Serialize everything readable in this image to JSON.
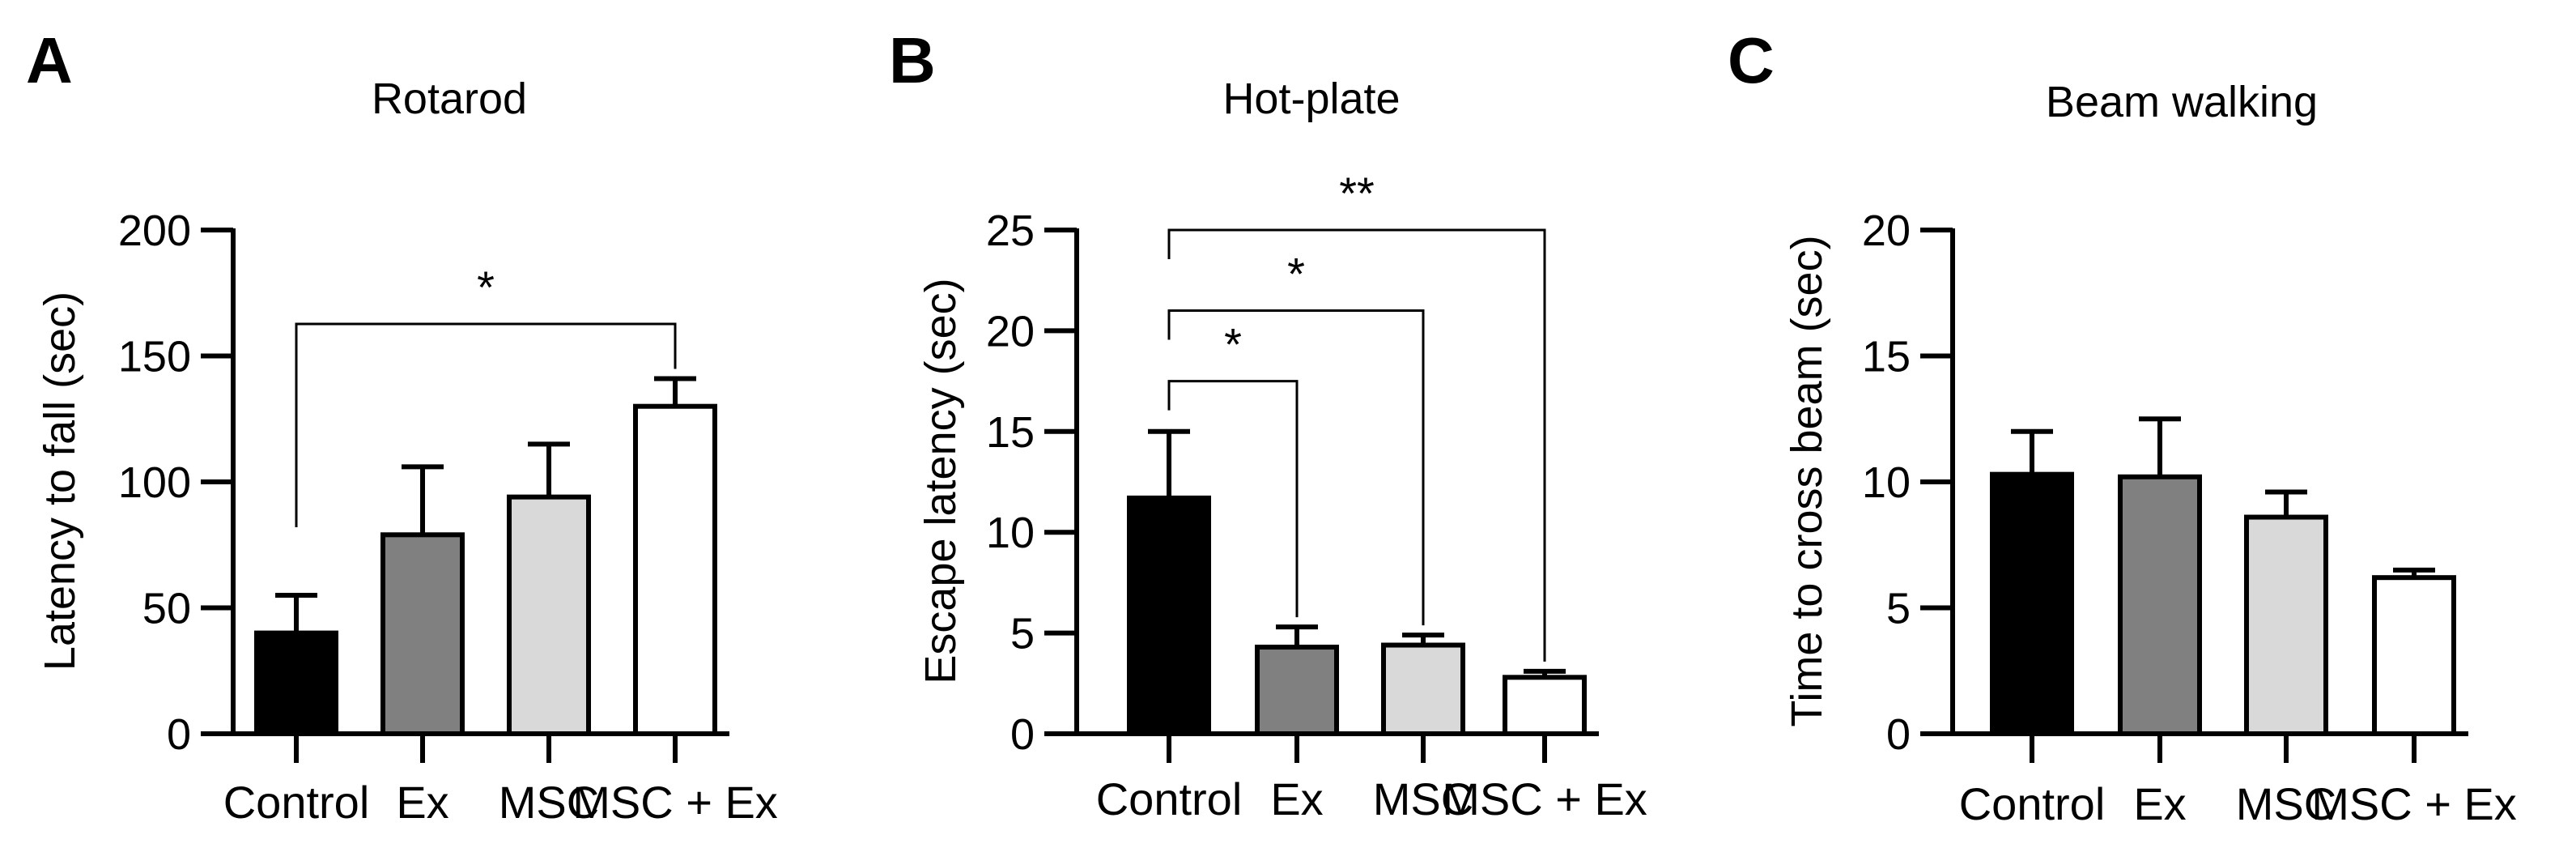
{
  "chart_data": [
    {
      "panel": "A",
      "type": "bar",
      "title": "Rotarod",
      "ylabel": "Latency to fall (sec)",
      "xlabel": "",
      "categories": [
        "Control",
        "Ex",
        "MSC",
        "MSC + Ex"
      ],
      "values": [
        40,
        79,
        94,
        130
      ],
      "errors": [
        15,
        27,
        21,
        11
      ],
      "ylim": [
        0,
        200
      ],
      "yticks": [
        0,
        50,
        100,
        150,
        200
      ],
      "bar_colors": [
        "#000000",
        "#808080",
        "#d9d9d9",
        "#ffffff"
      ],
      "significance": [
        {
          "from": 0,
          "to": 3,
          "label": "*"
        }
      ]
    },
    {
      "panel": "B",
      "type": "bar",
      "title": "Hot-plate",
      "ylabel": "Escape latency (sec)",
      "xlabel": "",
      "categories": [
        "Control",
        "Ex",
        "MSC",
        "MSC + Ex"
      ],
      "values": [
        11.7,
        4.3,
        4.4,
        2.8
      ],
      "errors": [
        3.3,
        1.0,
        0.5,
        0.3
      ],
      "ylim": [
        0,
        25
      ],
      "yticks": [
        0,
        5,
        10,
        15,
        20,
        25
      ],
      "bar_colors": [
        "#000000",
        "#808080",
        "#d9d9d9",
        "#ffffff"
      ],
      "significance": [
        {
          "from": 0,
          "to": 1,
          "label": "*",
          "level": 17.5
        },
        {
          "from": 0,
          "to": 2,
          "label": "*",
          "level": 21
        },
        {
          "from": 0,
          "to": 3,
          "label": "**",
          "level": 25
        }
      ]
    },
    {
      "panel": "C",
      "type": "bar",
      "title": "Beam walking",
      "ylabel": "Time to cross beam (sec)",
      "xlabel": "",
      "categories": [
        "Control",
        "Ex",
        "MSC",
        "MSC + Ex"
      ],
      "values": [
        10.3,
        10.2,
        8.6,
        6.2
      ],
      "errors": [
        1.7,
        2.3,
        1.0,
        0.3
      ],
      "ylim": [
        0,
        20
      ],
      "yticks": [
        0,
        5,
        10,
        15,
        20
      ],
      "bar_colors": [
        "#000000",
        "#808080",
        "#d9d9d9",
        "#ffffff"
      ],
      "significance": []
    }
  ]
}
